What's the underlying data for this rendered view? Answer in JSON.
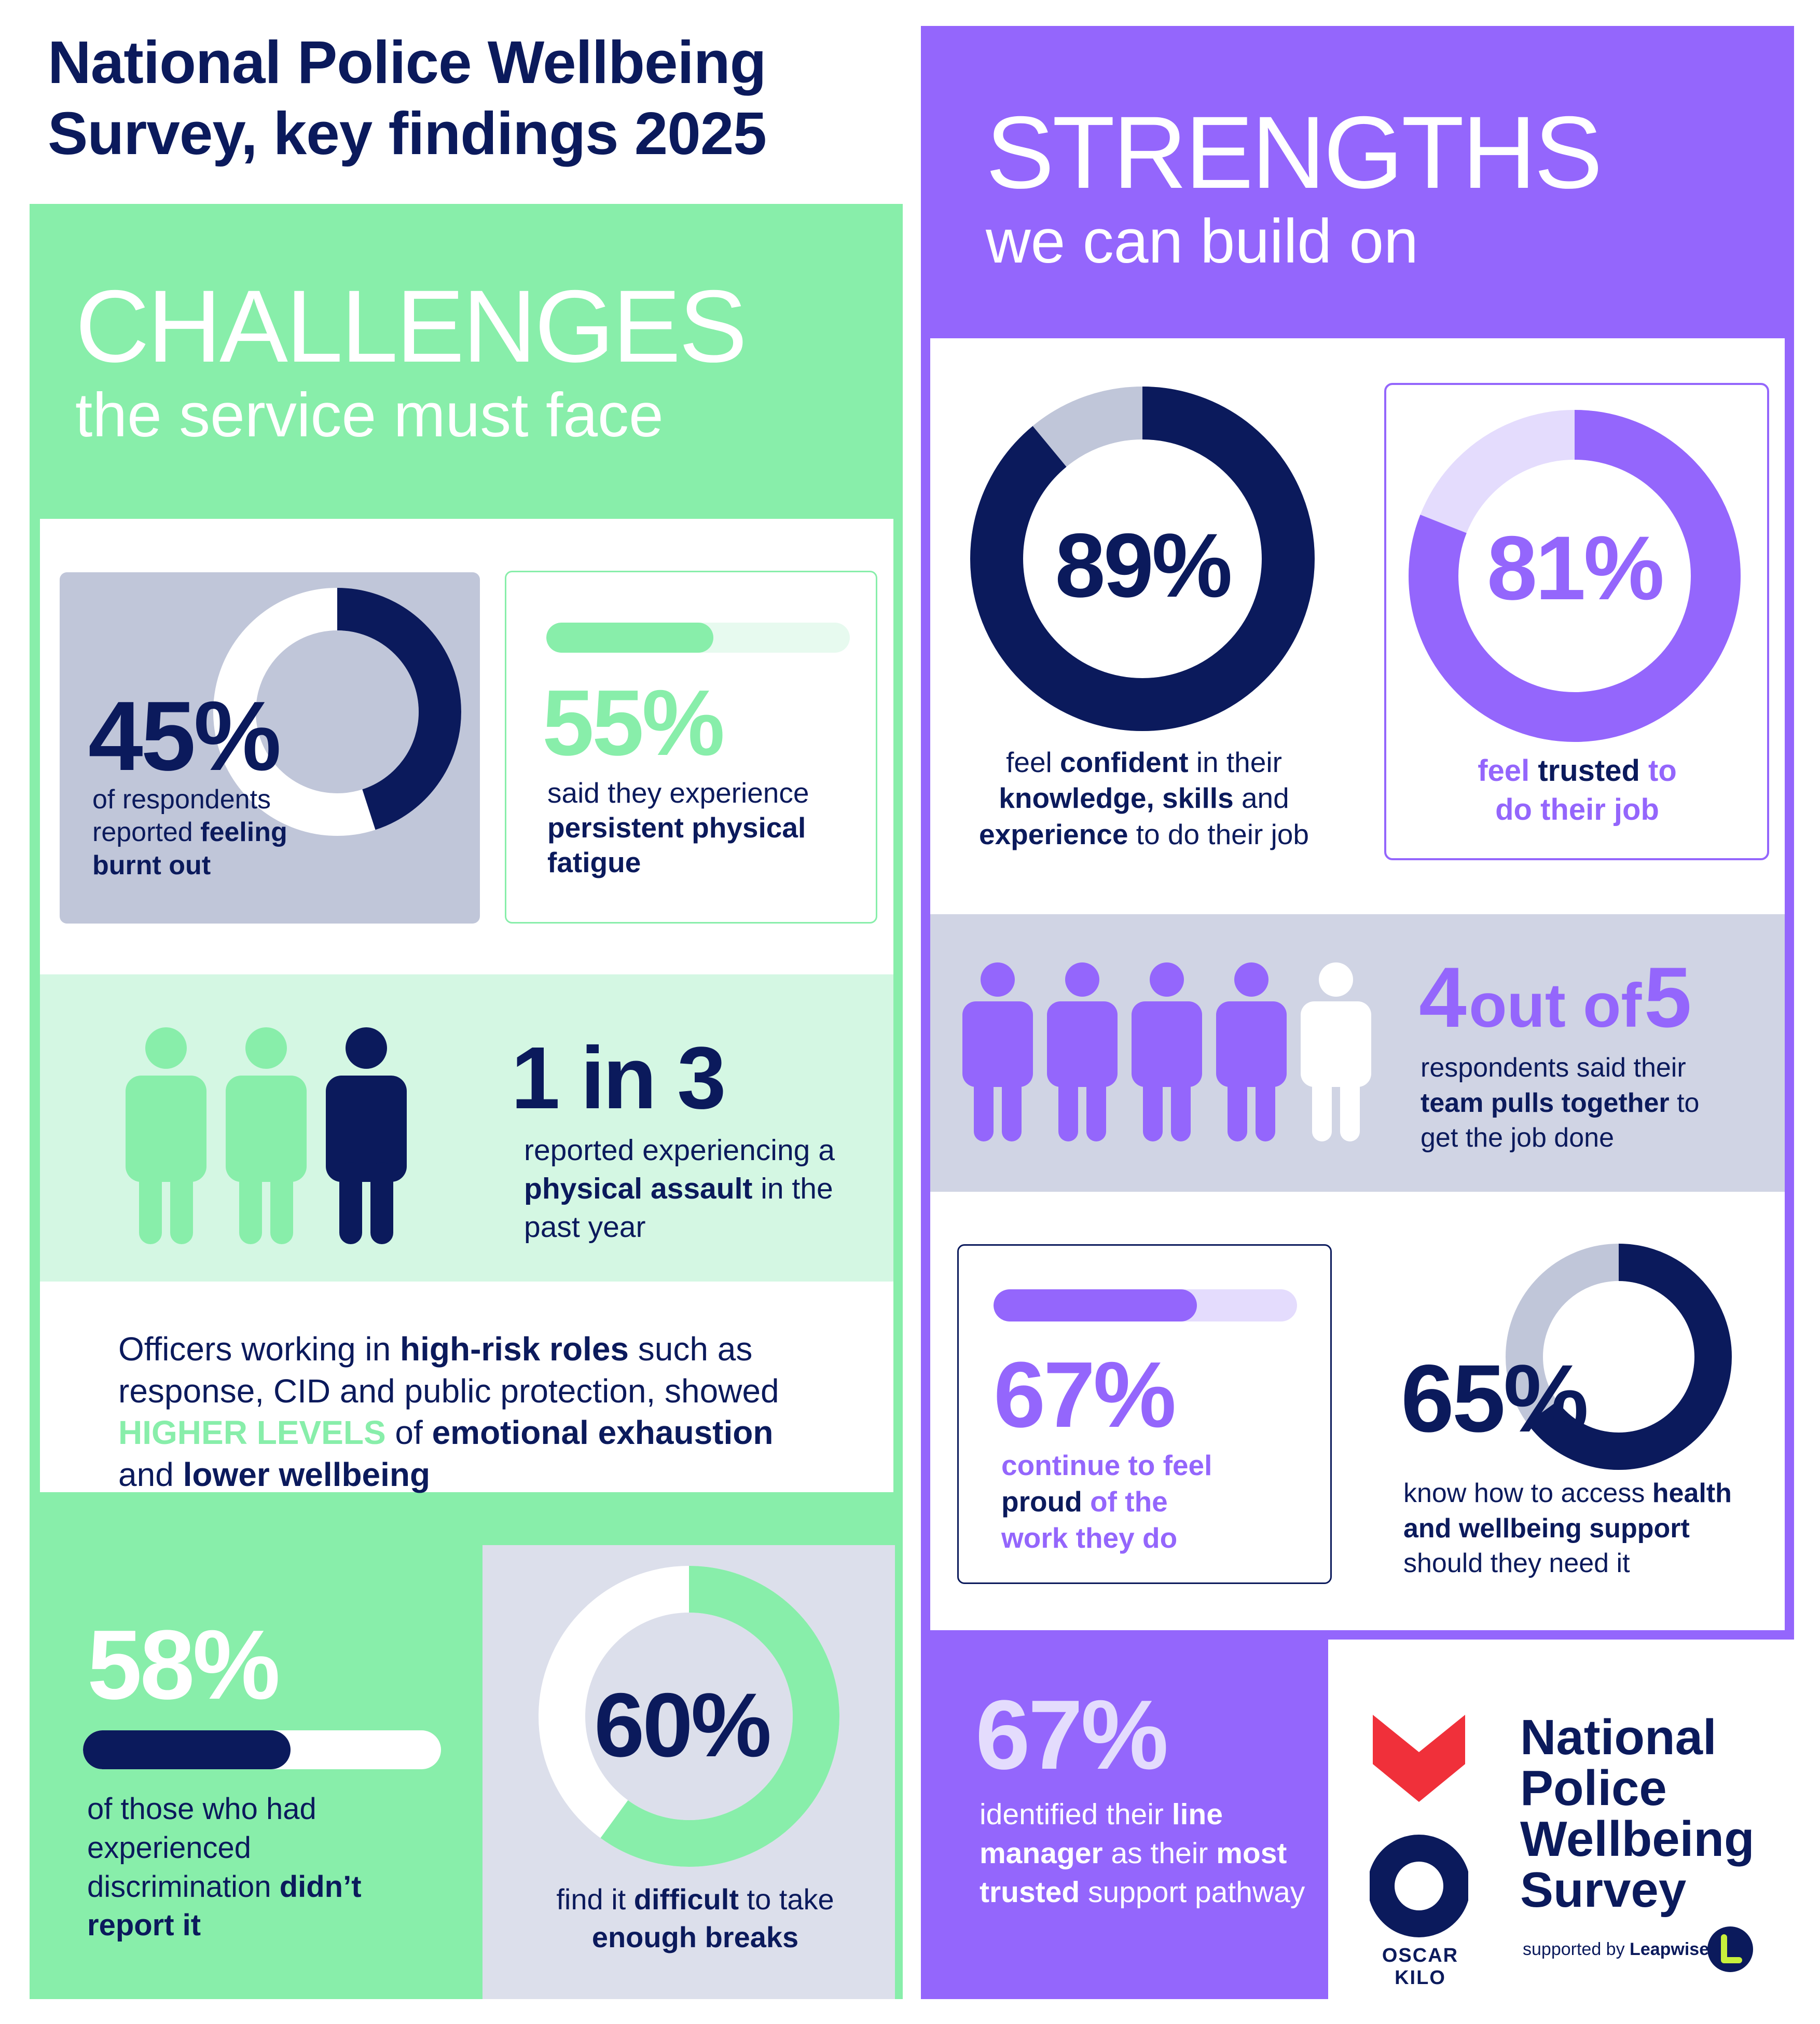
{
  "title": {
    "line1": "National Police Wellbeing",
    "line2": "Survey, key findings 2025"
  },
  "colors": {
    "navy": "#0b1a5c",
    "green": "#88eeaa",
    "light_green": "#d4f7e3",
    "purple": "#9466fc",
    "light_purple": "#e4dcfd",
    "grey": "#c0c6d9",
    "light_grey": "#dcdfeb",
    "red": "#f0303a"
  },
  "challenges": {
    "heading": "CHALLENGES",
    "subheading": "the service must face",
    "burnout": {
      "value": "45%",
      "fraction": 0.45,
      "pre": "of respondents reported",
      "bold": "feeling burnt out"
    },
    "fatigue": {
      "value": "55%",
      "fraction": 0.55,
      "pre": "said they experience",
      "bold": "persistent physical fatigue"
    },
    "assault": {
      "value": "1 in 3",
      "pre": "reported experiencing a",
      "bold": "physical assault",
      "post": "in the past year"
    },
    "high_risk": {
      "t1": "Officers working in",
      "b1": "high-risk roles",
      "t2": "such as response, CID and public protection, showed",
      "g1": "HIGHER LEVELS",
      "t3": "of",
      "b2": "emotional exhaustion",
      "t4": "and",
      "b3": "lower wellbeing"
    },
    "discrimination": {
      "value": "58%",
      "fraction": 0.58,
      "pre": "of those who had experienced discrimination",
      "bold": "didn’t report it"
    },
    "breaks": {
      "value": "60%",
      "fraction": 0.6,
      "pre": "find it",
      "bold1": "difficult",
      "mid": "to take",
      "bold2": "enough breaks"
    }
  },
  "strengths": {
    "heading": "STRENGTHS",
    "subheading": "we can build on",
    "confident": {
      "value": "89%",
      "fraction": 0.89,
      "t1": "feel",
      "b1": "confident",
      "t2": "in their",
      "b2": "knowledge, skills",
      "t3": "and",
      "b3": "experience",
      "t4": "to do their job"
    },
    "trusted": {
      "value": "81%",
      "fraction": 0.81,
      "t1": "feel",
      "b1": "trusted",
      "t2": "to",
      "t3": "do their job"
    },
    "team": {
      "value_a": "4",
      "value_mid": "out of",
      "value_b": "5",
      "pre": "respondents said their",
      "bold": "team pulls together",
      "post": "to get the job done"
    },
    "proud": {
      "value": "67%",
      "fraction": 0.67,
      "t1": "continue to feel",
      "b1": "proud",
      "t2": "of the",
      "t3": "work they do"
    },
    "access": {
      "value": "65%",
      "fraction": 0.65,
      "pre": "know how to access",
      "bold": "health and wellbeing support",
      "post": "should they need it"
    },
    "manager": {
      "value": "67%",
      "t1": "identified their",
      "b1": "line manager",
      "t2": "as their",
      "b2": "most trusted",
      "t3": "support pathway"
    }
  },
  "logo": {
    "oscar": "OSCAR KILO",
    "name_l1": "National",
    "name_l2": "Police",
    "name_l3": "Wellbeing",
    "name_l4": "Survey",
    "supported": "supported by",
    "partner": "Leapwise"
  }
}
